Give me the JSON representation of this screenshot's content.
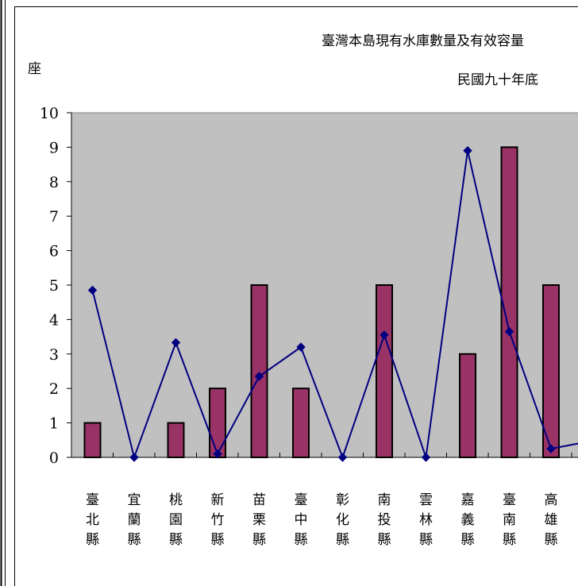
{
  "chart_data": {
    "type": "bar",
    "title": "臺灣本島現有水庫數量及有效容量",
    "subtitle": "民國九十年底",
    "ylabel": "座",
    "ylim": [
      0,
      10
    ],
    "yticks": [
      "0",
      "1",
      "2",
      "3",
      "4",
      "5",
      "6",
      "7",
      "8",
      "9",
      "10"
    ],
    "grid": false,
    "categories": [
      "臺北縣",
      "宜蘭縣",
      "桃園縣",
      "新竹縣",
      "苗栗縣",
      "臺中縣",
      "彰化縣",
      "南投縣",
      "雲林縣",
      "嘉義縣",
      "臺南縣",
      "高雄縣"
    ],
    "series": [
      {
        "type": "bar",
        "values": [
          1,
          0,
          1,
          2,
          5,
          2,
          0,
          5,
          0,
          3,
          9,
          5
        ],
        "color": "#993366"
      },
      {
        "type": "line",
        "values": [
          4.85,
          0,
          3.33,
          0.1,
          2.35,
          3.2,
          0,
          3.55,
          0,
          8.9,
          3.65,
          0.25
        ],
        "color": "#000080"
      }
    ],
    "plot_background": "#c0c0c0"
  }
}
